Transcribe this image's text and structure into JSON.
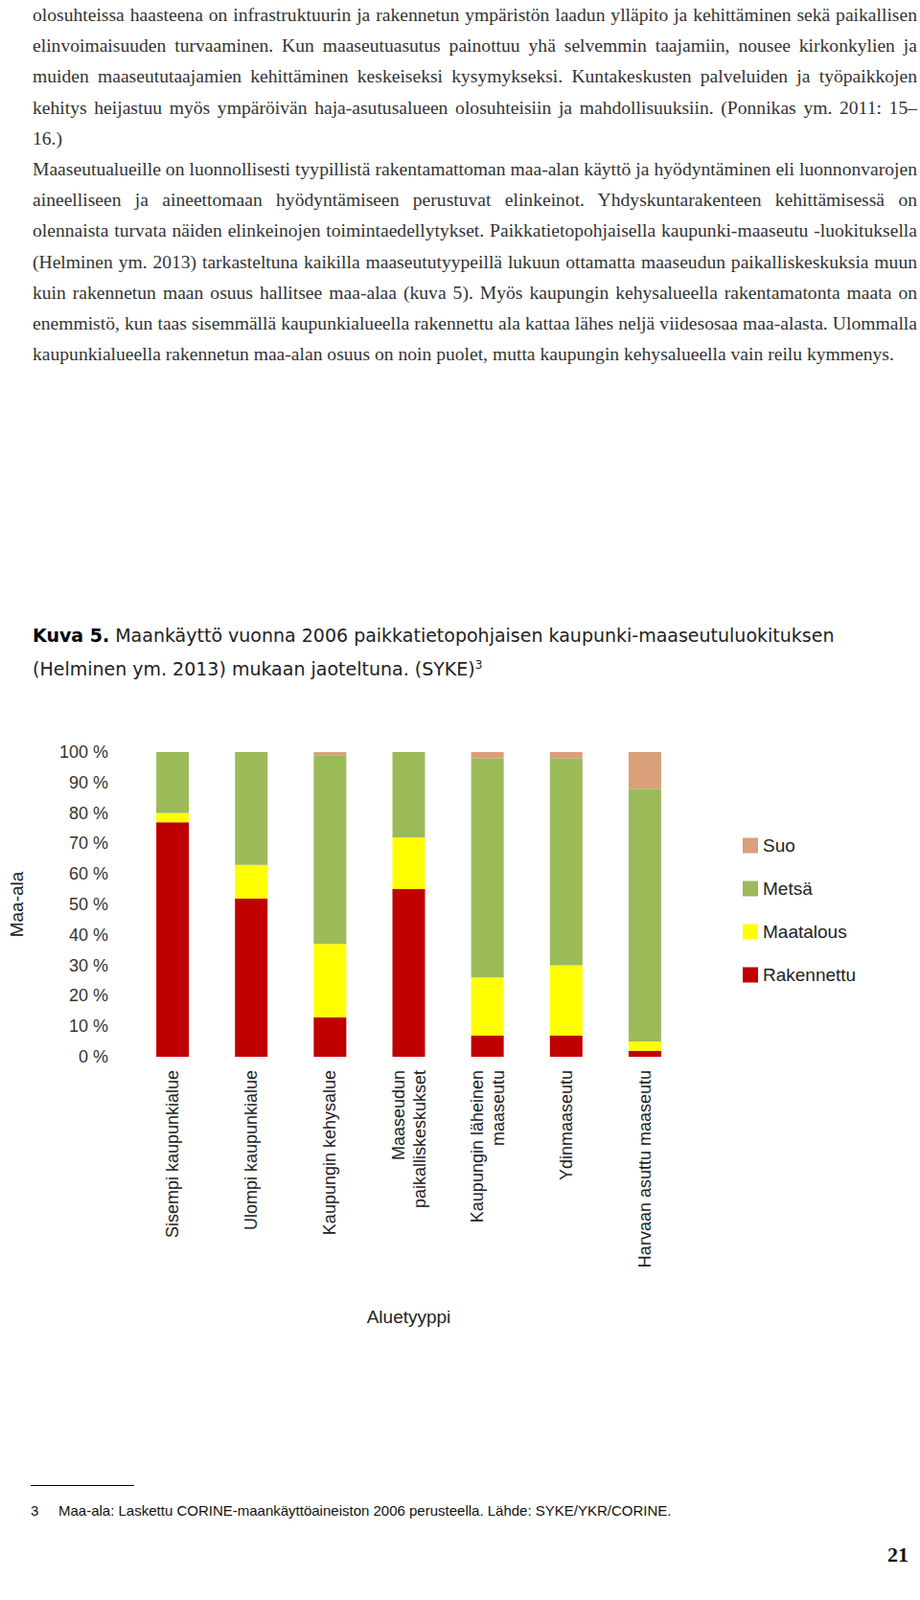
{
  "document": {
    "paragraphs": [
      "olosuhteissa haasteena on infrastruktuurin ja rakennetun ympäristön laadun ylläpito ja kehittäminen sekä paikallisen elinvoimaisuuden turvaaminen. Kun maaseutuasutus painottuu yhä selvemmin taajamiin, nousee kirkonkylien ja muiden maaseututaajamien kehittäminen keskeiseksi kysymykseksi. Kuntakeskusten palveluiden ja työpaikkojen kehitys heijastuu myös ympäröivän haja-asutusalueen olosuhteisiin ja mahdollisuuksiin. (Ponnikas ym. 2011: 15–16.)",
      "Maaseutualueille on luonnollisesti tyypillistä rakentamattoman maa-alan käyttö ja hyödyntäminen eli luonnonvarojen aineelliseen ja aineettomaan hyödyntämiseen perustuvat elinkeinot. Yhdyskuntarakenteen kehittämisessä on olennaista turvata näiden elinkeinojen toimintaedellytykset. Paikkatietopohjaisella kaupunki-maaseutu -luokituksella (Helminen ym. 2013) tarkasteltuna kaikilla maaseututyypeillä lukuun ottamatta maaseudun paikalliskeskuksia muun kuin rakennetun maan osuus hallitsee maa-alaa (kuva 5). Myös kaupungin kehysalueella rakentamatonta maata on enemmistö, kun taas sisemmällä kaupunkialueella rakennettu ala kattaa lähes neljä viidesosaa maa-alasta. Ulommalla kaupunkialueella rakennetun maa-alan osuus on noin puolet, mutta kaupungin kehysalueella vain reilu kymmenys."
    ],
    "figure": {
      "label": "Kuva 5.",
      "caption": "Maankäyttö vuonna 2006 paikkatietopohjaisen kaupunki-maaseutuluokituksen (Helminen ym. 2013) mukaan jaoteltuna. (SYKE)",
      "footnote_ref": "3"
    },
    "footnote": {
      "number": "3",
      "text": "Maa-ala: Laskettu CORINE-maankäyttöaineiston 2006 perusteella. Lähde: SYKE/YKR/CORINE."
    },
    "page_number": "21"
  },
  "chart_data": {
    "type": "bar",
    "stacked": true,
    "x_label": "Aluetyyppi",
    "y_label": "Maa-ala",
    "categories": [
      "Sisempi kaupunkialue",
      "Ulompi kaupunkialue",
      "Kaupungin kehysalue",
      "Maaseudun\npaikalliskeskukset",
      "Kaupungin läheinen\nmaaseutu",
      "Ydinmaaseutu",
      "Harvaan asuttu maaseutu"
    ],
    "series": [
      {
        "name": "Rakennettu",
        "color": "#c00000",
        "values": [
          77,
          52,
          13,
          55,
          7,
          7,
          2
        ]
      },
      {
        "name": "Maatalous",
        "color": "#ffff00",
        "values": [
          3,
          11,
          24,
          17,
          19,
          23,
          3
        ]
      },
      {
        "name": "Metsä",
        "color": "#9bbb59",
        "values": [
          20,
          37,
          62,
          28,
          72,
          68,
          83
        ]
      },
      {
        "name": "Suo",
        "color": "#d9a07a",
        "values": [
          0,
          0,
          1,
          0,
          2,
          2,
          12
        ]
      }
    ],
    "ylim": [
      0,
      100
    ],
    "yticks": [
      {
        "value": 0,
        "label": "0 %"
      },
      {
        "value": 10,
        "label": "10 %"
      },
      {
        "value": 20,
        "label": "20 %"
      },
      {
        "value": 30,
        "label": "30 %"
      },
      {
        "value": 40,
        "label": "40 %"
      },
      {
        "value": 50,
        "label": "50 %"
      },
      {
        "value": 60,
        "label": "60 %"
      },
      {
        "value": 70,
        "label": "70 %"
      },
      {
        "value": 80,
        "label": "80 %"
      },
      {
        "value": 90,
        "label": "90 %"
      },
      {
        "value": 100,
        "label": "100 %"
      }
    ],
    "grid": false,
    "legend": "right",
    "data_labels": false
  }
}
